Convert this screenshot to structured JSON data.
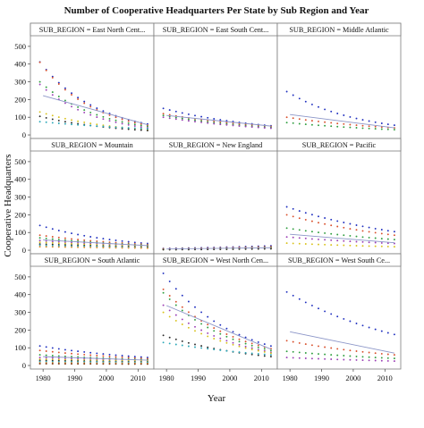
{
  "chart_data": {
    "type": "scatter",
    "title": "Number of Cooperative Headquarters Per State by Sub Region and Year",
    "xlabel": "Year",
    "ylabel": "Cooperative Headquarters",
    "xlim": [
      1976,
      2015
    ],
    "ylim": [
      -20,
      560
    ],
    "x_ticks": [
      "1980",
      "1990",
      "2000",
      "2010"
    ],
    "y_ticks": [
      "0",
      "100",
      "200",
      "300",
      "400",
      "500"
    ],
    "grid": false,
    "legend": "none",
    "series_colors": [
      "#1f2fbf",
      "#d94f2b",
      "#2f9e3f",
      "#9b3fb5",
      "#d9c21a",
      "#2a2a2a",
      "#2aa7b8",
      "#e08a2b",
      "#7a3a1a"
    ],
    "trend_color": "#8c96c8",
    "panels": [
      {
        "label": "SUB_REGION = East North Cent...",
        "trend": [
          [
            1980,
            222
          ],
          [
            2013,
            58
          ]
        ],
        "series": [
          {
            "start": 412,
            "end": 62
          },
          {
            "start": 410,
            "end": 55
          },
          {
            "start": 300,
            "end": 48
          },
          {
            "start": 285,
            "end": 40
          },
          {
            "start": 130,
            "end": 30
          },
          {
            "start": 105,
            "end": 25
          },
          {
            "start": 75,
            "end": 35
          }
        ]
      },
      {
        "label": "SUB_REGION = East South Cent...",
        "trend": [
          [
            1980,
            110
          ],
          [
            2013,
            50
          ]
        ],
        "series": [
          {
            "start": 150,
            "end": 52
          },
          {
            "start": 120,
            "end": 48
          },
          {
            "start": 110,
            "end": 42
          },
          {
            "start": 100,
            "end": 38
          }
        ]
      },
      {
        "label": "SUB_REGION = Middle Atlantic",
        "trend": [
          [
            1980,
            115
          ],
          [
            2013,
            40
          ]
        ],
        "series": [
          {
            "start": 245,
            "end": 55
          },
          {
            "start": 100,
            "end": 40
          },
          {
            "start": 70,
            "end": 30
          }
        ]
      },
      {
        "label": "SUB_REGION = Mountain",
        "trend": [
          [
            1980,
            58
          ],
          [
            2013,
            26
          ]
        ],
        "series": [
          {
            "start": 140,
            "end": 38
          },
          {
            "start": 85,
            "end": 32
          },
          {
            "start": 70,
            "end": 28
          },
          {
            "start": 55,
            "end": 25
          },
          {
            "start": 45,
            "end": 22
          },
          {
            "start": 35,
            "end": 18
          },
          {
            "start": 28,
            "end": 15
          },
          {
            "start": 20,
            "end": 12
          }
        ]
      },
      {
        "label": "SUB_REGION = New England",
        "trend": [
          [
            1980,
            7
          ],
          [
            2013,
            14
          ]
        ],
        "series": [
          {
            "start": 10,
            "end": 25
          },
          {
            "start": 8,
            "end": 20
          },
          {
            "start": 6,
            "end": 15
          },
          {
            "start": 5,
            "end": 12
          },
          {
            "start": 4,
            "end": 10
          },
          {
            "start": 3,
            "end": 8
          }
        ]
      },
      {
        "label": "SUB_REGION = Pacific",
        "trend": [
          [
            1980,
            90
          ],
          [
            2013,
            42
          ]
        ],
        "series": [
          {
            "start": 245,
            "end": 105
          },
          {
            "start": 200,
            "end": 85
          },
          {
            "start": 125,
            "end": 60
          },
          {
            "start": 75,
            "end": 38
          },
          {
            "start": 40,
            "end": 20
          }
        ]
      },
      {
        "label": "SUB_REGION = South Atlantic",
        "trend": [
          [
            1980,
            50
          ],
          [
            2013,
            30
          ]
        ],
        "series": [
          {
            "start": 110,
            "end": 45
          },
          {
            "start": 85,
            "end": 38
          },
          {
            "start": 60,
            "end": 32
          },
          {
            "start": 45,
            "end": 28
          },
          {
            "start": 35,
            "end": 25
          },
          {
            "start": 28,
            "end": 20
          },
          {
            "start": 22,
            "end": 18
          },
          {
            "start": 15,
            "end": 12
          },
          {
            "start": 10,
            "end": 8
          }
        ]
      },
      {
        "label": "SUB_REGION = West North Cen...",
        "trend": [
          [
            1980,
            338
          ],
          [
            2013,
            92
          ]
        ],
        "series": [
          {
            "start": 520,
            "end": 110
          },
          {
            "start": 430,
            "end": 95
          },
          {
            "start": 410,
            "end": 85
          },
          {
            "start": 340,
            "end": 75
          },
          {
            "start": 300,
            "end": 70
          },
          {
            "start": 170,
            "end": 50
          },
          {
            "start": 130,
            "end": 60
          }
        ]
      },
      {
        "label": "SUB_REGION = West South Ce...",
        "trend": [
          [
            1980,
            190
          ],
          [
            2013,
            70
          ]
        ],
        "series": [
          {
            "start": 415,
            "end": 175
          },
          {
            "start": 140,
            "end": 60
          },
          {
            "start": 80,
            "end": 40
          },
          {
            "start": 45,
            "end": 25
          }
        ]
      }
    ]
  }
}
